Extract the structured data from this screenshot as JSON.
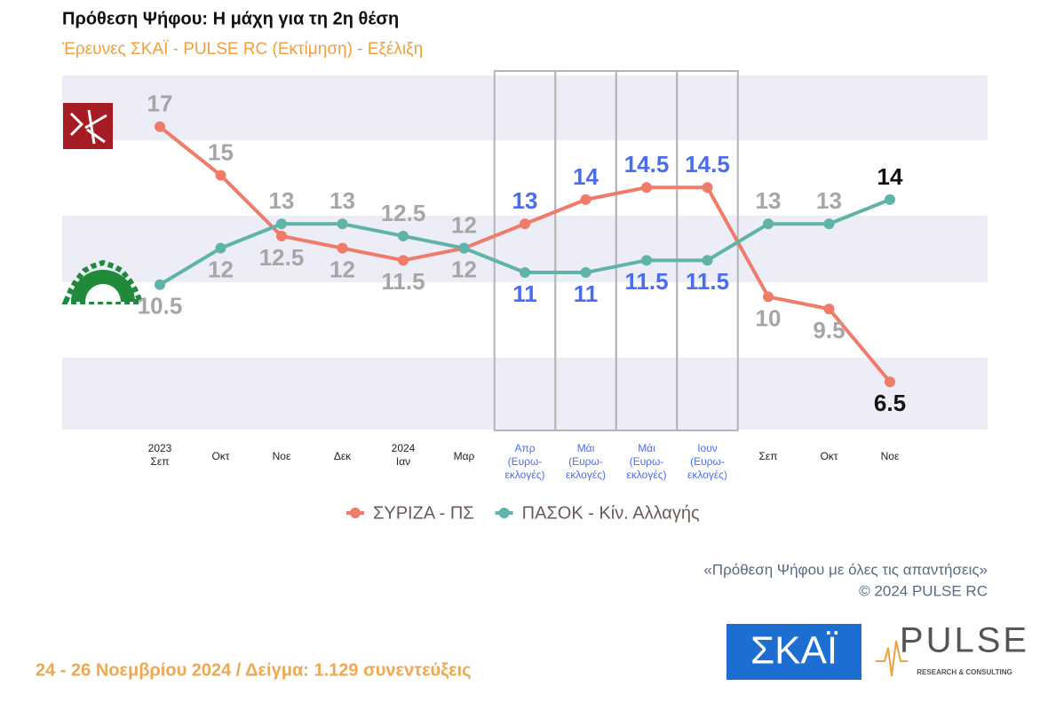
{
  "chart_data": {
    "type": "line",
    "title": "Πρόθεση Ψήφου: Η μάχη για τη 2η θέση",
    "subtitle": "Έρευνες ΣΚΑΪ - PULSE RC   (Εκτίμηση) - Εξέλιξη",
    "categories": [
      [
        "2023",
        "Σεπ"
      ],
      [
        "Οκτ"
      ],
      [
        "Νοε"
      ],
      [
        "Δεκ"
      ],
      [
        "2024",
        "Ιαν"
      ],
      [
        "Μαρ"
      ],
      [
        "Απρ",
        "(Ευρω-",
        "εκλογές)"
      ],
      [
        "Μάι",
        "(Ευρω-",
        "εκλογές)"
      ],
      [
        "Μάι",
        "(Ευρω-",
        "εκλογές)"
      ],
      [
        "Ιουν",
        "(Ευρω-",
        "εκλογές)"
      ],
      [
        "Σεπ"
      ],
      [
        "Οκτ"
      ],
      [
        "Νοε"
      ]
    ],
    "category_colors": [
      "#222",
      "#222",
      "#222",
      "#222",
      "#222",
      "#222",
      "#4a6cf0",
      "#4a6cf0",
      "#4a6cf0",
      "#4a6cf0",
      "#222",
      "#222",
      "#222"
    ],
    "value_label_colors": [
      "#a6a6a6",
      "#a6a6a6",
      "#a6a6a6",
      "#a6a6a6",
      "#a6a6a6",
      "#a6a6a6",
      "#4a6cf0",
      "#4a6cf0",
      "#4a6cf0",
      "#4a6cf0",
      "#a6a6a6",
      "#a6a6a6",
      "#111"
    ],
    "series": [
      {
        "name": "ΣΥΡΙΖΑ - ΠΣ",
        "color": "#f07b69",
        "values": [
          17,
          15,
          12.5,
          12,
          11.5,
          12,
          13,
          14,
          14.5,
          14.5,
          10,
          9.5,
          6.5
        ]
      },
      {
        "name": "ΠΑΣΟΚ - Κίν. Αλλαγής",
        "color": "#5fb3a8",
        "values": [
          10.5,
          12,
          13,
          13,
          12.5,
          12,
          11,
          11,
          11.5,
          11.5,
          13,
          13,
          14
        ]
      }
    ],
    "ylim": [
      4.5,
      19
    ],
    "notes": [
      "«Πρόθεση Ψήφου με όλες τις απαντήσεις»",
      "©  2024  PULSE RC"
    ],
    "footer": "24 - 26 Νοεμβρίου 2024  /  Δείγμα:  1.129 συνεντεύξεις",
    "logos": [
      "ΣΚΑΪ",
      "PULSE",
      "RESEARCH & CONSULTING"
    ]
  }
}
